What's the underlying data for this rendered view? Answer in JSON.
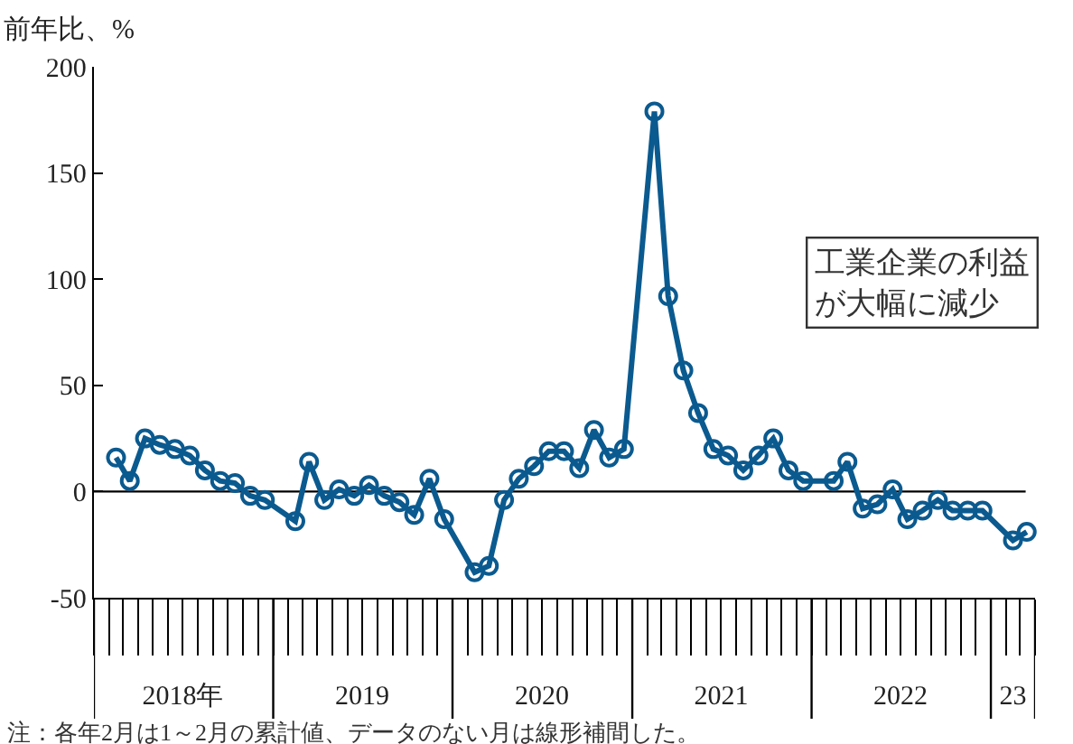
{
  "chart_data": {
    "type": "line",
    "ylabel": "前年比、%",
    "x": [
      "2018-02-15",
      "2018-03-15",
      "2018-04-15",
      "2018-05-15",
      "2018-06-15",
      "2018-07-15",
      "2018-08-15",
      "2018-09-15",
      "2018-10-15",
      "2018-11-15",
      "2018-12-15",
      "2019-02-15",
      "2019-03-15",
      "2019-04-15",
      "2019-05-15",
      "2019-06-15",
      "2019-07-15",
      "2019-08-15",
      "2019-09-15",
      "2019-10-15",
      "2019-11-15",
      "2019-12-15",
      "2020-02-15",
      "2020-03-15",
      "2020-04-15",
      "2020-05-15",
      "2020-06-15",
      "2020-07-15",
      "2020-08-15",
      "2020-09-15",
      "2020-10-15",
      "2020-11-15",
      "2020-12-15",
      "2021-02-15",
      "2021-03-15",
      "2021-04-15",
      "2021-05-15",
      "2021-06-15",
      "2021-07-15",
      "2021-08-15",
      "2021-09-15",
      "2021-10-15",
      "2021-11-15",
      "2021-12-15",
      "2022-02-15",
      "2022-03-15",
      "2022-04-15",
      "2022-05-15",
      "2022-06-15",
      "2022-07-15",
      "2022-08-15",
      "2022-09-15",
      "2022-10-15",
      "2022-11-15",
      "2022-12-15",
      "2023-02-15",
      "2023-03-15"
    ],
    "series": [
      {
        "color": "#0b5a8f",
        "values": [
          16,
          5,
          25,
          22,
          20,
          17,
          10,
          5,
          4,
          -2,
          -4,
          -14,
          14,
          -4,
          1,
          -2,
          3,
          -2,
          -5,
          -11,
          6,
          -13,
          -38,
          -35,
          -4,
          6,
          12,
          19,
          19,
          11,
          29,
          16,
          20,
          179,
          92,
          57,
          37,
          20,
          17,
          10,
          17,
          25,
          10,
          5,
          5,
          14,
          -8,
          -6,
          1,
          -13,
          -9,
          -4,
          -9,
          -9,
          -9,
          -23,
          -19
        ]
      }
    ],
    "marker": "circle",
    "line_style": "solid",
    "grid": false,
    "ylim": [
      -50,
      200
    ],
    "yticks": [
      -50,
      0,
      50,
      100,
      150,
      200
    ],
    "xlim": [
      "2018-01",
      "2023-04"
    ],
    "xticks": [
      {
        "value": "2018-07",
        "label": "2018年"
      },
      {
        "value": "2019-07",
        "label": "2019"
      },
      {
        "value": "2020-07",
        "label": "2020"
      },
      {
        "value": "2021-07",
        "label": "2021"
      },
      {
        "value": "2022-07",
        "label": "2022"
      },
      {
        "value": "2023-02-15",
        "label": "23"
      }
    ],
    "ref_lines": [
      {
        "axis": "y",
        "value": 0,
        "color": "#000000"
      }
    ],
    "annotations": [
      "工業企業の利益が大幅に減少",
      "注：各年2月は1～2月の累計値、データのない月は線形補間した。"
    ]
  }
}
